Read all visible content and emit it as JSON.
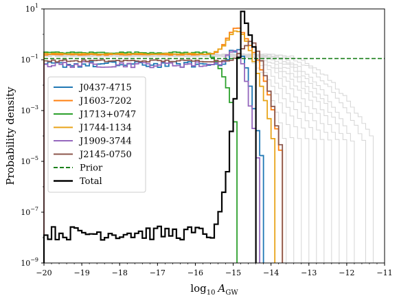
{
  "chart_data": {
    "type": "line",
    "subtype": "step histogram",
    "title": "",
    "xlabel": "log10 A_GW",
    "xlabel_main": "log",
    "xlabel_sub": "10",
    "xlabel_var": "A",
    "xlabel_var_sub": "GW",
    "ylabel": "Probability density",
    "xlim": [
      -20,
      -11
    ],
    "ylim": [
      1e-09,
      10
    ],
    "yscale": "log",
    "x_ticks": [
      -20,
      -19,
      -18,
      -17,
      -16,
      -15,
      -14,
      -13,
      -12,
      -11
    ],
    "x_tick_labels": [
      "−20",
      "−19",
      "−18",
      "−17",
      "−16",
      "−15",
      "−14",
      "−13",
      "−12",
      "−11"
    ],
    "y_ticks": [
      -9,
      -7,
      -5,
      -3,
      -1,
      1
    ],
    "y_tick_labels": [
      {
        "base": "10",
        "exp": "−9"
      },
      {
        "base": "10",
        "exp": "−7"
      },
      {
        "base": "10",
        "exp": "−5"
      },
      {
        "base": "10",
        "exp": "−3"
      },
      {
        "base": "10",
        "exp": "−1"
      },
      {
        "base": "10",
        "exp": "1"
      }
    ],
    "legend_position": "center-left",
    "grid": false,
    "bin_width": 0.1,
    "series": [
      {
        "name": "J0437-4715",
        "color": "#1f77b4",
        "style": "solid",
        "plateau": 0.065,
        "noise": 0.12,
        "upper_edge": -14.2,
        "bump": [
          -14.75,
          0.95
        ]
      },
      {
        "name": "J1603-7202",
        "color": "#ff7f0e",
        "style": "solid",
        "plateau": 0.16,
        "noise": 0.02,
        "upper_edge": -13.7,
        "bump": [
          -14.9,
          1.05
        ]
      },
      {
        "name": "J1713+0747",
        "color": "#2ca02c",
        "style": "solid",
        "plateau": 0.19,
        "noise": 0.03,
        "upper_edge": -14.85,
        "bump": [
          -15.0,
          0.6
        ]
      },
      {
        "name": "J1744-1134",
        "color": "#e8a317",
        "style": "solid",
        "plateau": 0.17,
        "noise": 0.02,
        "upper_edge": -13.85,
        "bump": [
          -14.9,
          0.9
        ]
      },
      {
        "name": "J1909-3744",
        "color": "#9467bd",
        "style": "solid",
        "plateau": 0.065,
        "noise": 0.12,
        "upper_edge": -14.3,
        "bump": [
          -14.8,
          1.0
        ]
      },
      {
        "name": "J2145-0750",
        "color": "#8c564b",
        "style": "solid",
        "plateau": 0.09,
        "noise": 0.04,
        "upper_edge": -13.65,
        "bump": [
          -14.5,
          0.75
        ]
      },
      {
        "name": "Prior",
        "color": "#1a7f1a",
        "style": "dashed",
        "value": 0.111
      },
      {
        "name": "Total",
        "color": "#000000",
        "style": "solid",
        "baseline": 1.5e-08,
        "peak_center": -14.75,
        "peak_value": 8.0,
        "upper_edge": -14.45
      }
    ],
    "background_series": {
      "color": "#d8d8d8",
      "count": 12,
      "plateau": 0.15,
      "upper_edges": [
        -13.6,
        -13.4,
        -13.2,
        -13.0,
        -12.8,
        -12.6,
        -12.4,
        -12.2,
        -12.0,
        -11.8,
        -11.5,
        -11.25
      ]
    }
  }
}
